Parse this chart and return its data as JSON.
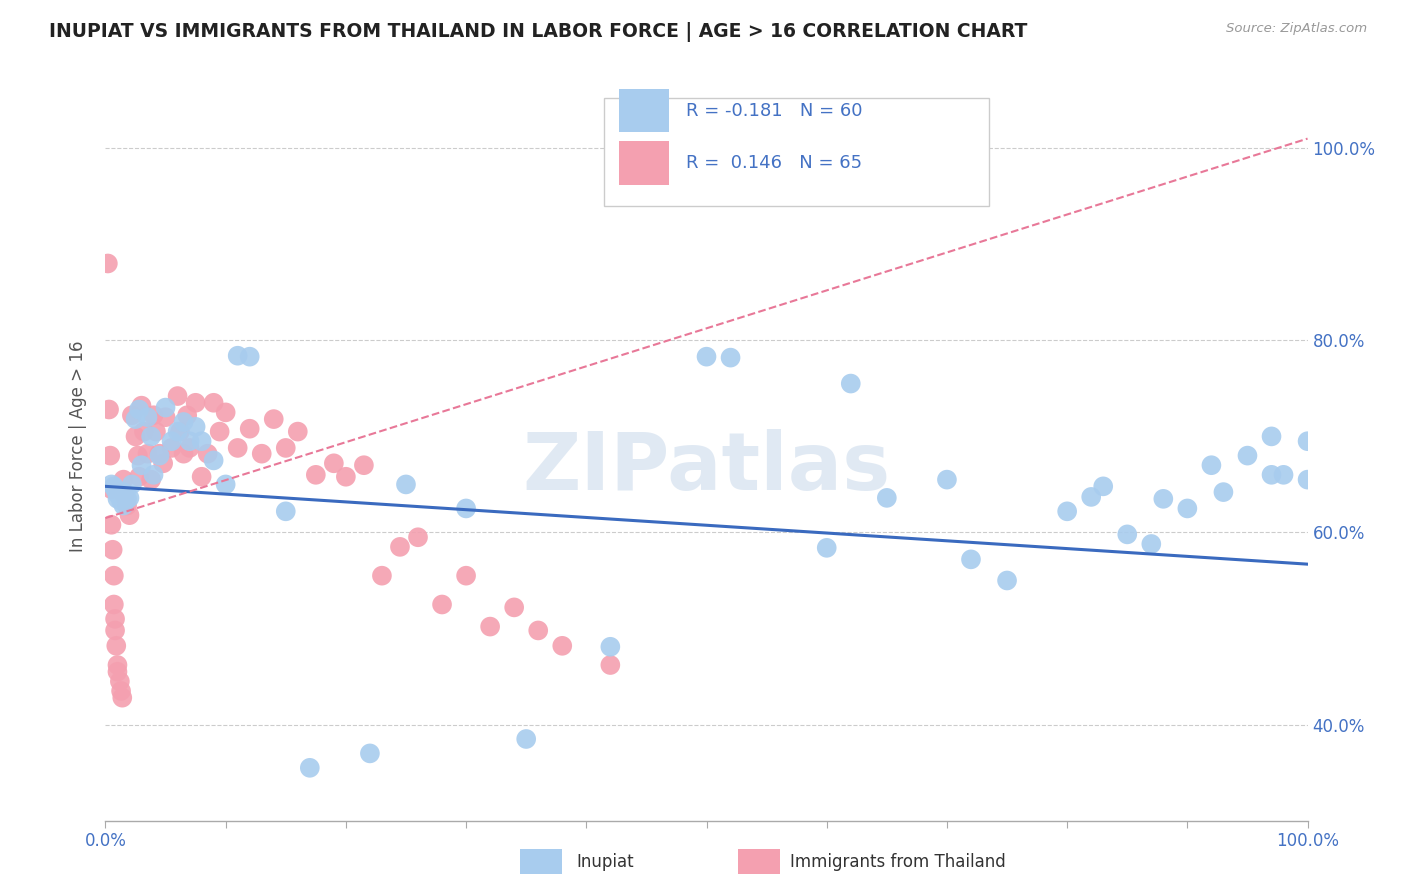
{
  "title": "INUPIAT VS IMMIGRANTS FROM THAILAND IN LABOR FORCE | AGE > 16 CORRELATION CHART",
  "source_text": "Source: ZipAtlas.com",
  "ylabel": "In Labor Force | Age > 16",
  "xlim": [
    0.0,
    1.0
  ],
  "ylim": [
    0.3,
    1.08
  ],
  "ytick_values": [
    0.4,
    0.6,
    0.8,
    1.0
  ],
  "ytick_labels": [
    "40.0%",
    "60.0%",
    "80.0%",
    "100.0%"
  ],
  "xtick_values": [
    0.0,
    0.1,
    0.2,
    0.3,
    0.4,
    0.5,
    0.6,
    0.7,
    0.8,
    0.9,
    1.0
  ],
  "xtick_labels": [
    "0.0%",
    "",
    "",
    "",
    "",
    "",
    "",
    "",
    "",
    "",
    "100.0%"
  ],
  "watermark": "ZIPatlas",
  "inupiat_color": "#a8ccee",
  "thailand_color": "#f4a0b0",
  "inupiat_line_color": "#3a6abf",
  "thailand_line_color": "#e87898",
  "legend_patch_inupiat": "#a8ccee",
  "legend_patch_thailand": "#f4a0b0",
  "background_color": "#ffffff",
  "grid_color": "#cccccc",
  "blue_line_start": 0.648,
  "blue_line_end": 0.567,
  "pink_line_start": 0.615,
  "pink_line_end": 1.01,
  "inupiat_x": [
    0.005,
    0.007,
    0.008,
    0.01,
    0.01,
    0.012,
    0.013,
    0.015,
    0.015,
    0.018,
    0.02,
    0.022,
    0.025,
    0.028,
    0.03,
    0.035,
    0.038,
    0.04,
    0.045,
    0.05,
    0.055,
    0.06,
    0.065,
    0.07,
    0.075,
    0.08,
    0.09,
    0.1,
    0.11,
    0.12,
    0.15,
    0.17,
    0.22,
    0.25,
    0.3,
    0.35,
    0.42,
    0.5,
    0.52,
    0.6,
    0.62,
    0.65,
    0.7,
    0.72,
    0.75,
    0.8,
    0.82,
    0.83,
    0.85,
    0.87,
    0.88,
    0.9,
    0.92,
    0.93,
    0.95,
    0.97,
    0.97,
    0.98,
    1.0,
    1.0
  ],
  "inupiat_y": [
    0.65,
    0.648,
    0.645,
    0.635,
    0.64,
    0.638,
    0.633,
    0.642,
    0.628,
    0.635,
    0.636,
    0.65,
    0.718,
    0.728,
    0.67,
    0.72,
    0.7,
    0.66,
    0.68,
    0.73,
    0.695,
    0.705,
    0.715,
    0.695,
    0.71,
    0.695,
    0.675,
    0.65,
    0.784,
    0.783,
    0.622,
    0.355,
    0.37,
    0.65,
    0.625,
    0.385,
    0.481,
    0.783,
    0.782,
    0.584,
    0.755,
    0.636,
    0.655,
    0.572,
    0.55,
    0.622,
    0.637,
    0.648,
    0.598,
    0.588,
    0.635,
    0.625,
    0.67,
    0.642,
    0.68,
    0.7,
    0.66,
    0.66,
    0.695,
    0.655
  ],
  "thailand_x": [
    0.002,
    0.003,
    0.004,
    0.005,
    0.005,
    0.006,
    0.007,
    0.007,
    0.008,
    0.008,
    0.009,
    0.01,
    0.01,
    0.012,
    0.013,
    0.014,
    0.015,
    0.016,
    0.018,
    0.02,
    0.022,
    0.025,
    0.027,
    0.028,
    0.03,
    0.032,
    0.035,
    0.038,
    0.04,
    0.042,
    0.045,
    0.048,
    0.05,
    0.055,
    0.06,
    0.062,
    0.065,
    0.068,
    0.07,
    0.075,
    0.08,
    0.085,
    0.09,
    0.095,
    0.1,
    0.11,
    0.12,
    0.13,
    0.14,
    0.15,
    0.16,
    0.175,
    0.19,
    0.2,
    0.215,
    0.23,
    0.245,
    0.26,
    0.28,
    0.3,
    0.32,
    0.34,
    0.36,
    0.38,
    0.42
  ],
  "thailand_y": [
    0.88,
    0.728,
    0.68,
    0.645,
    0.608,
    0.582,
    0.555,
    0.525,
    0.51,
    0.498,
    0.482,
    0.462,
    0.455,
    0.445,
    0.435,
    0.428,
    0.655,
    0.638,
    0.628,
    0.618,
    0.722,
    0.7,
    0.68,
    0.658,
    0.732,
    0.705,
    0.682,
    0.655,
    0.722,
    0.705,
    0.682,
    0.672,
    0.72,
    0.688,
    0.742,
    0.705,
    0.682,
    0.722,
    0.688,
    0.735,
    0.658,
    0.682,
    0.735,
    0.705,
    0.725,
    0.688,
    0.708,
    0.682,
    0.718,
    0.688,
    0.705,
    0.66,
    0.672,
    0.658,
    0.67,
    0.555,
    0.585,
    0.595,
    0.525,
    0.555,
    0.502,
    0.522,
    0.498,
    0.482,
    0.462
  ]
}
